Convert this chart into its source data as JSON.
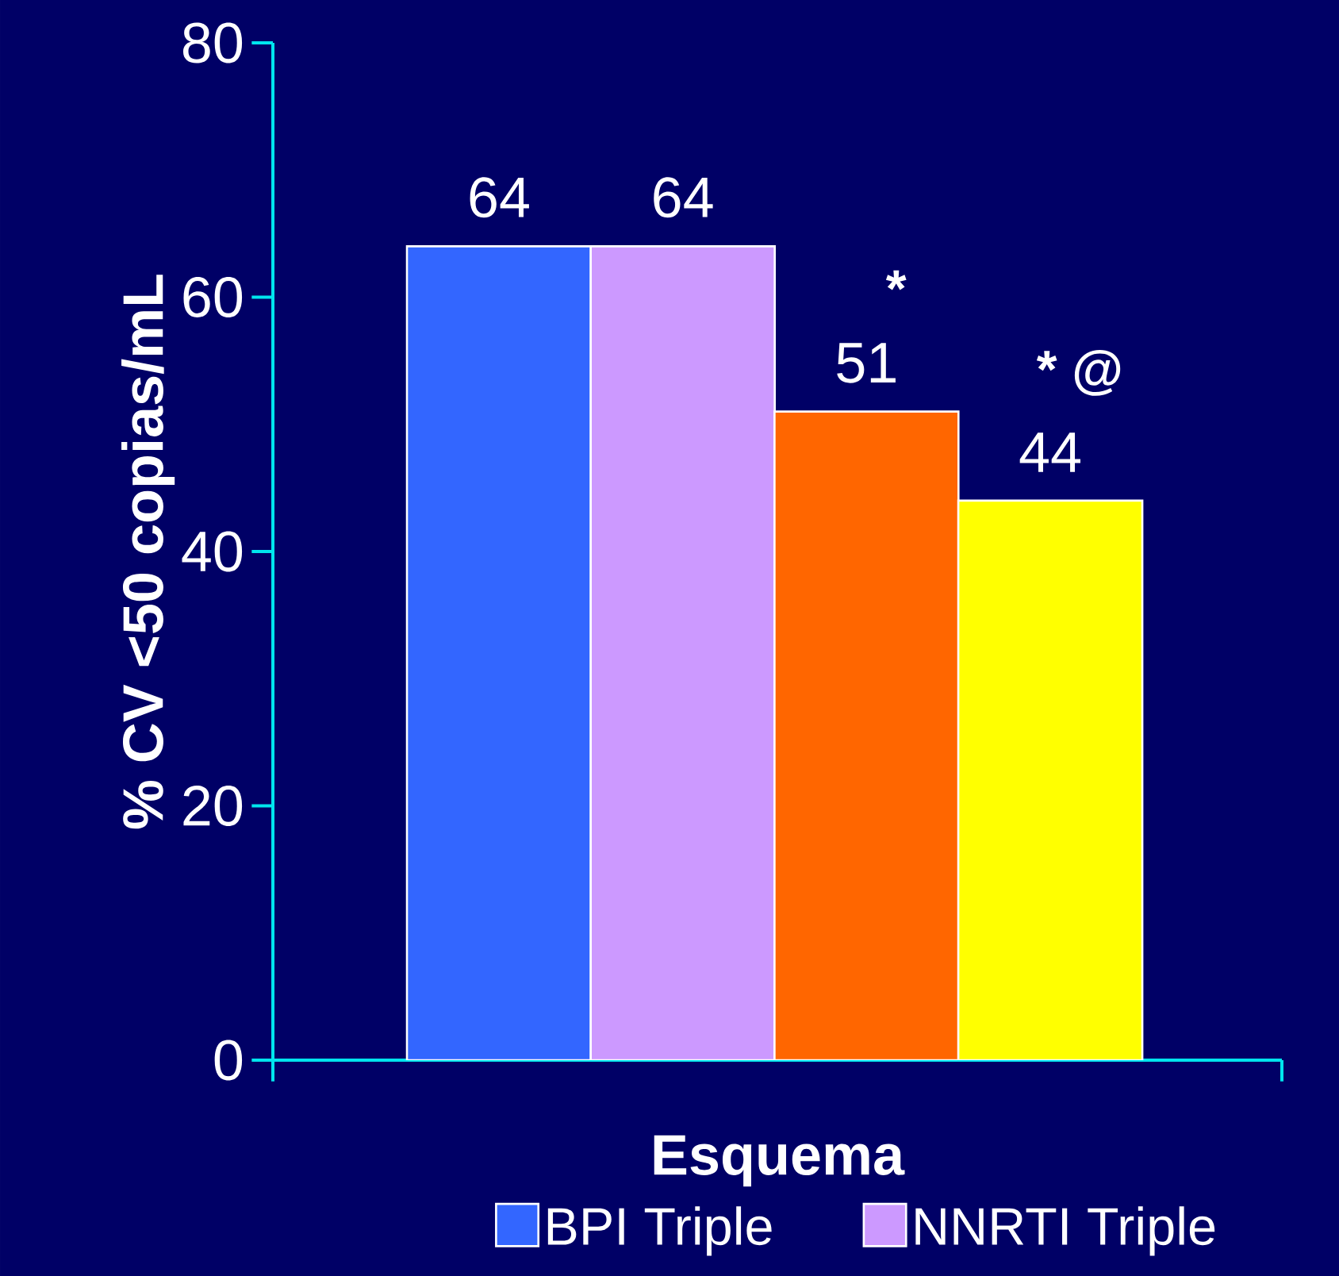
{
  "chart_data": {
    "type": "bar",
    "categories": [
      null,
      null,
      null,
      null
    ],
    "series": [
      {
        "name": "BPI Triple",
        "color": "#3366ff",
        "values": [
          64,
          null,
          null,
          null
        ]
      },
      {
        "name": "NNRTI Triple",
        "color": "#cc99ff",
        "values": [
          null,
          64,
          null,
          null
        ]
      },
      {
        "color": "#ff6600",
        "values": [
          null,
          null,
          51,
          null
        ]
      },
      {
        "color": "#ffff00",
        "values": [
          null,
          null,
          null,
          44
        ]
      }
    ],
    "xlabel": "Esquema",
    "ylabel": "% CV <50 copias/mL",
    "ylim": [
      0,
      80
    ],
    "yticks": [
      0,
      20,
      40,
      60,
      80
    ],
    "data_labels": true,
    "legend": "bottom",
    "annotations": [
      "*",
      "* @"
    ]
  }
}
